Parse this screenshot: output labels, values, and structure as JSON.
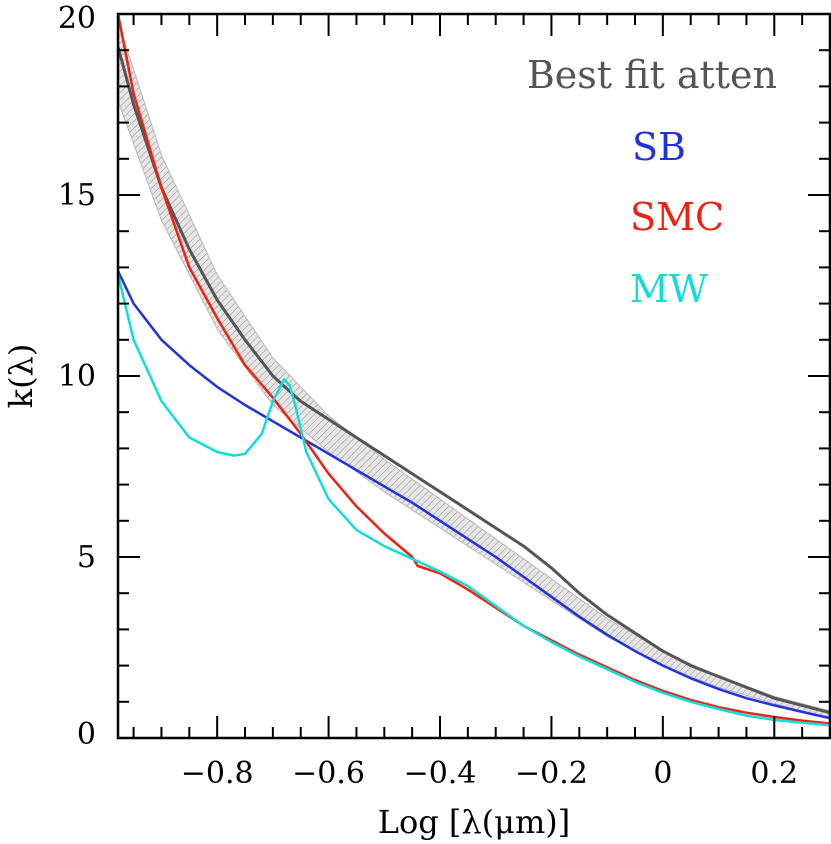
{
  "chart_data": {
    "type": "line",
    "xlabel": "Log [λ(μm)]",
    "ylabel": "k(λ)",
    "xlim": [
      -0.978,
      0.3
    ],
    "ylim": [
      0,
      20
    ],
    "x_ticks": [
      -0.8,
      -0.6,
      -0.4,
      -0.2,
      0,
      0.2
    ],
    "x_tick_labels": [
      "−0.8",
      "−0.6",
      "−0.4",
      "−0.2",
      "0",
      "0.2"
    ],
    "y_ticks": [
      0,
      5,
      10,
      15,
      20
    ],
    "y_tick_labels": [
      "0",
      "5",
      "10",
      "15",
      "20"
    ],
    "legend": {
      "title": "Best fit atten",
      "title_color": "#555555",
      "position": "top-right",
      "entries": [
        {
          "label": "SB",
          "color": "#2233dd"
        },
        {
          "label": "SMC",
          "color": "#ee2211"
        },
        {
          "label": "MW",
          "color": "#11dddd"
        }
      ]
    },
    "band": {
      "name": "Best fit atten uncertainty",
      "x": [
        -0.978,
        -0.9,
        -0.8,
        -0.7,
        -0.6,
        -0.5,
        -0.4,
        -0.3,
        -0.2,
        -0.1,
        0,
        0.1,
        0.2,
        0.3
      ],
      "lower": [
        17.6,
        14.3,
        11.3,
        9.2,
        7.9,
        6.8,
        5.8,
        4.8,
        3.8,
        2.8,
        2.0,
        1.4,
        0.95,
        0.55
      ],
      "upper": [
        19.8,
        16.1,
        12.8,
        10.5,
        8.9,
        7.7,
        6.6,
        5.5,
        4.4,
        3.3,
        2.4,
        1.7,
        1.15,
        0.75
      ],
      "color": "#b8b8b8"
    },
    "series": [
      {
        "name": "Best fit atten",
        "color": "#555555",
        "x": [
          -0.978,
          -0.95,
          -0.9,
          -0.85,
          -0.8,
          -0.75,
          -0.7,
          -0.65,
          -0.6,
          -0.55,
          -0.5,
          -0.45,
          -0.4,
          -0.35,
          -0.3,
          -0.25,
          -0.2,
          -0.15,
          -0.1,
          -0.05,
          0,
          0.05,
          0.1,
          0.15,
          0.2,
          0.25,
          0.3
        ],
        "values": [
          19.1,
          17.5,
          15.2,
          13.5,
          12.1,
          11.0,
          10.0,
          9.3,
          8.8,
          8.3,
          7.8,
          7.3,
          6.8,
          6.3,
          5.8,
          5.3,
          4.7,
          4.0,
          3.4,
          2.9,
          2.4,
          2.0,
          1.7,
          1.4,
          1.1,
          0.9,
          0.7
        ]
      },
      {
        "name": "SB",
        "color": "#2233dd",
        "x": [
          -0.978,
          -0.95,
          -0.9,
          -0.85,
          -0.8,
          -0.75,
          -0.7,
          -0.65,
          -0.6,
          -0.55,
          -0.5,
          -0.45,
          -0.4,
          -0.35,
          -0.3,
          -0.25,
          -0.2,
          -0.15,
          -0.1,
          -0.05,
          0,
          0.05,
          0.1,
          0.15,
          0.2,
          0.25,
          0.3
        ],
        "values": [
          12.9,
          12.0,
          11.0,
          10.3,
          9.7,
          9.2,
          8.75,
          8.3,
          7.85,
          7.4,
          6.95,
          6.5,
          6.0,
          5.5,
          5.0,
          4.45,
          3.9,
          3.35,
          2.85,
          2.4,
          2.0,
          1.65,
          1.35,
          1.1,
          0.9,
          0.72,
          0.55
        ]
      },
      {
        "name": "SMC",
        "color": "#ee2211",
        "x": [
          -0.978,
          -0.95,
          -0.9,
          -0.85,
          -0.8,
          -0.75,
          -0.7,
          -0.65,
          -0.6,
          -0.55,
          -0.5,
          -0.45,
          -0.44,
          -0.4,
          -0.35,
          -0.3,
          -0.25,
          -0.2,
          -0.15,
          -0.1,
          -0.05,
          0,
          0.05,
          0.1,
          0.15,
          0.2,
          0.25,
          0.3
        ],
        "values": [
          20.0,
          17.8,
          15.2,
          13.0,
          11.6,
          10.3,
          9.4,
          8.4,
          7.3,
          6.4,
          5.65,
          5.0,
          4.75,
          4.55,
          4.1,
          3.6,
          3.1,
          2.7,
          2.3,
          1.95,
          1.6,
          1.3,
          1.05,
          0.85,
          0.7,
          0.58,
          0.48,
          0.4
        ]
      },
      {
        "name": "MW",
        "color": "#11dddd",
        "x": [
          -0.978,
          -0.95,
          -0.9,
          -0.85,
          -0.8,
          -0.77,
          -0.75,
          -0.72,
          -0.7,
          -0.68,
          -0.67,
          -0.66,
          -0.64,
          -0.6,
          -0.55,
          -0.5,
          -0.45,
          -0.4,
          -0.35,
          -0.3,
          -0.25,
          -0.2,
          -0.15,
          -0.1,
          -0.05,
          0,
          0.05,
          0.1,
          0.15,
          0.2,
          0.25,
          0.3
        ],
        "values": [
          12.8,
          11.0,
          9.3,
          8.3,
          7.9,
          7.8,
          7.85,
          8.4,
          9.3,
          9.9,
          9.75,
          9.2,
          7.9,
          6.6,
          5.75,
          5.3,
          4.95,
          4.6,
          4.2,
          3.65,
          3.1,
          2.65,
          2.25,
          1.9,
          1.55,
          1.25,
          1.0,
          0.8,
          0.62,
          0.5,
          0.42,
          0.35
        ]
      }
    ]
  }
}
